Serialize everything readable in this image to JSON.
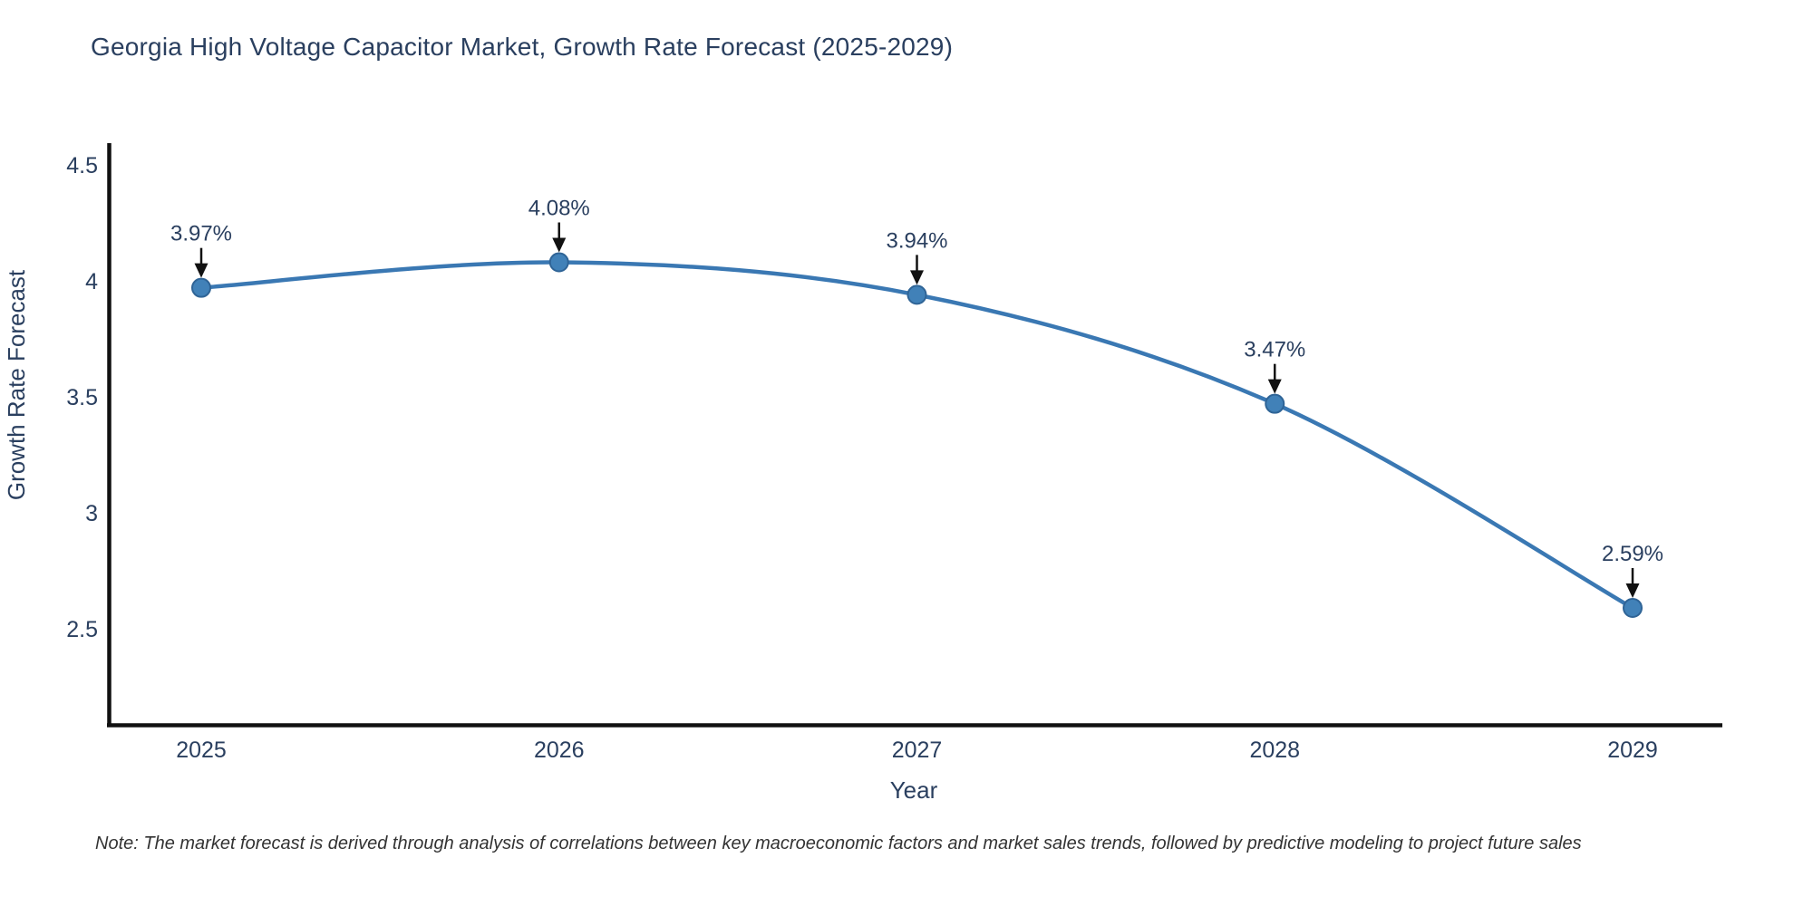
{
  "title": "Georgia High Voltage Capacitor Market, Growth Rate Forecast (2025-2029)",
  "footnote": "Note: The market forecast is derived through analysis of correlations between key macroeconomic factors and market sales trends, followed by predictive modeling to project future sales",
  "chart_data": {
    "type": "line",
    "title": "Georgia High Voltage Capacitor Market, Growth Rate Forecast (2025-2029)",
    "x": [
      2025,
      2026,
      2027,
      2028,
      2029
    ],
    "x_tick_labels": [
      "2025",
      "2026",
      "2027",
      "2028",
      "2029"
    ],
    "values": [
      3.97,
      4.08,
      3.94,
      3.47,
      2.59
    ],
    "point_labels": [
      "3.97%",
      "4.08%",
      "3.94%",
      "3.47%",
      "2.59%"
    ],
    "xlabel": "Year",
    "ylabel": "Growth Rate Forecast",
    "yticks": [
      4.5,
      4,
      3.5,
      3,
      2.5
    ],
    "ylim": [
      2.09,
      4.59
    ],
    "xlim": [
      2024.73,
      2029.25
    ],
    "grid": false,
    "legend": "none",
    "line_shape": "spline",
    "colors": {
      "line": "#3a78b3",
      "marker_fill": "#4181b8",
      "marker_edge": "#2f6496",
      "axis": "#111111",
      "tick_text": "#2a3f5f",
      "annotation_text": "#2a3f5f",
      "arrow": "#111111",
      "title_text": "#2a3f5f"
    }
  }
}
